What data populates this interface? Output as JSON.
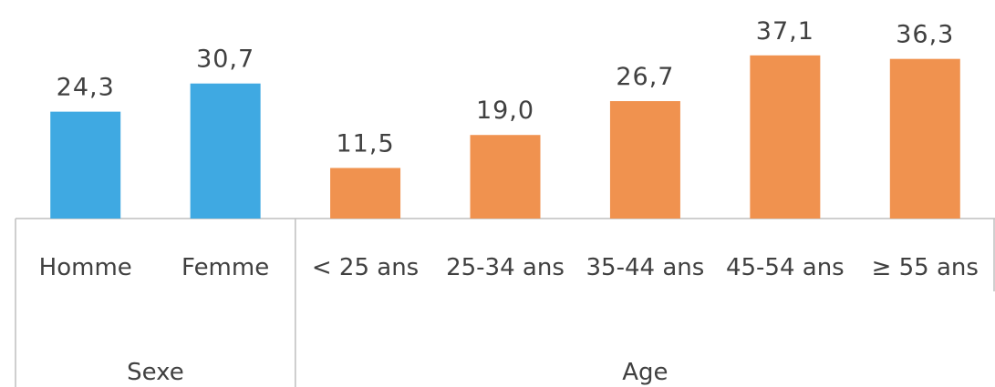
{
  "chart_data": {
    "type": "bar",
    "categories": [
      "Homme",
      "Femme",
      "< 25 ans",
      "25-34 ans",
      "35-44 ans",
      "45-54 ans",
      "≥ 55 ans"
    ],
    "values": [
      24.3,
      30.7,
      11.5,
      19.0,
      26.7,
      37.1,
      36.3
    ],
    "value_labels": [
      "24,3",
      "30,7",
      "11,5",
      "19,0",
      "26,7",
      "37,1",
      "36,3"
    ],
    "colors": [
      "#3fa9e2",
      "#3fa9e2",
      "#f0924f",
      "#f0924f",
      "#f0924f",
      "#f0924f",
      "#f0924f"
    ],
    "groups": [
      {
        "label": "Sexe",
        "count": 2
      },
      {
        "label": "Age",
        "count": 5
      }
    ]
  }
}
